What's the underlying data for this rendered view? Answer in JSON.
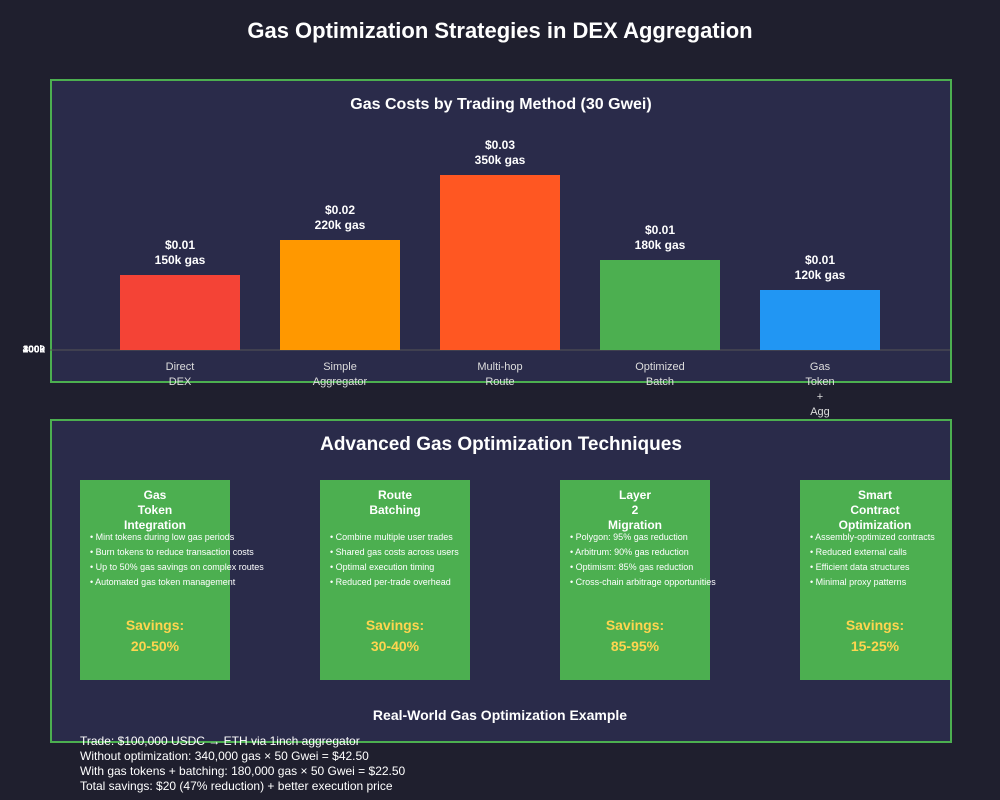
{
  "title": "Gas Optimization Strategies in DEX Aggregation",
  "chart_data": {
    "type": "bar",
    "title": "Gas Costs by Trading Method (30 Gwei)",
    "categories": [
      "Direct DEX",
      "Simple Aggregator",
      "Multi-hop Route",
      "Optimized Batch",
      "Gas Token + Agg"
    ],
    "category_lines": [
      [
        "Direct",
        "DEX"
      ],
      [
        "Simple",
        "Aggregator"
      ],
      [
        "Multi-hop",
        "Route"
      ],
      [
        "Optimized",
        "Batch"
      ],
      [
        "Gas",
        "Token",
        "+",
        "Agg"
      ]
    ],
    "values": [
      150,
      220,
      350,
      180,
      120
    ],
    "value_unit": "k gas",
    "cost_labels": [
      "$0.01",
      "$0.02",
      "$0.03",
      "$0.01",
      "$0.01"
    ],
    "gas_labels": [
      "150k gas",
      "220k gas",
      "350k gas",
      "180k gas",
      "120k gas"
    ],
    "colors": [
      "#f44336",
      "#ff9800",
      "#ff5722",
      "#4caf50",
      "#2196f3"
    ],
    "y_tick_labels": [
      "0",
      "100k",
      "200k",
      "300k",
      "400k"
    ],
    "y_tick_values": [
      0,
      100,
      200,
      300,
      400
    ],
    "ylim": [
      0,
      400
    ]
  },
  "techniques": {
    "title": "Advanced Gas Optimization Techniques",
    "cards": [
      {
        "title_lines": [
          "Gas",
          "Token",
          "Integration"
        ],
        "bullets": [
          "Mint tokens during low gas periods",
          "Burn tokens to reduce transaction costs",
          "Up to 50% gas savings on complex routes",
          "Automated gas token management"
        ],
        "savings_label": "Savings:",
        "savings_value": "20-50%"
      },
      {
        "title_lines": [
          "Route",
          "Batching"
        ],
        "bullets": [
          "Combine multiple user trades",
          "Shared gas costs across users",
          "Optimal execution timing",
          "Reduced per-trade overhead"
        ],
        "savings_label": "Savings:",
        "savings_value": "30-40%"
      },
      {
        "title_lines": [
          "Layer",
          "2",
          "Migration"
        ],
        "bullets": [
          "Polygon: 95% gas reduction",
          "Arbitrum: 90% gas reduction",
          "Optimism: 85% gas reduction",
          "Cross-chain arbitrage opportunities"
        ],
        "savings_label": "Savings:",
        "savings_value": "85-95%"
      },
      {
        "title_lines": [
          "Smart",
          "Contract",
          "Optimization"
        ],
        "bullets": [
          "Assembly-optimized contracts",
          "Reduced external calls",
          "Efficient data structures",
          "Minimal proxy patterns"
        ],
        "savings_label": "Savings:",
        "savings_value": "15-25%"
      }
    ]
  },
  "example": {
    "title": "Real-World Gas Optimization Example",
    "lines": [
      "Trade: $100,000 USDC → ETH via 1inch aggregator",
      "Without optimization: 340,000 gas × 50 Gwei = $42.50",
      "With gas tokens + batching: 180,000 gas × 50 Gwei = $22.50",
      "Total savings: $20 (47% reduction) + better execution price"
    ]
  }
}
